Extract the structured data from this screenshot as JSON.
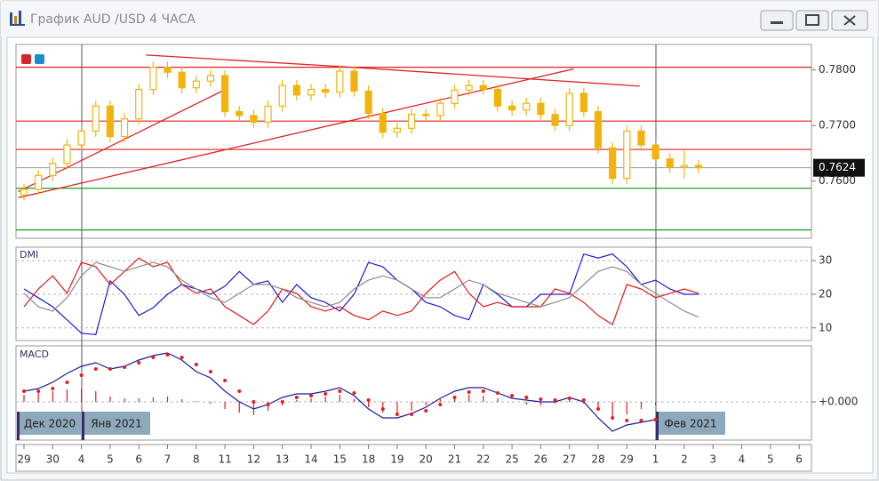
{
  "window": {
    "title": "График AUD /USD  4 ЧАСА"
  },
  "x_axis": {
    "categories": [
      "29",
      "30",
      "4",
      "5",
      "6",
      "7",
      "8",
      "11",
      "12",
      "13",
      "14",
      "15",
      "18",
      "19",
      "20",
      "21",
      "22",
      "25",
      "26",
      "27",
      "28",
      "29",
      "1",
      "2",
      "3",
      "4",
      "5",
      "6"
    ],
    "periods": [
      "Дек 2020",
      "Янв 2021",
      "Фев 2021"
    ]
  },
  "chart_data": [
    {
      "type": "candlestick",
      "color": "#f2b40c",
      "open": [
        0.7575,
        0.7585,
        0.761,
        0.7632,
        0.7665,
        0.769,
        0.7735,
        0.768,
        0.7712,
        0.7765,
        0.7805,
        0.7796,
        0.7768,
        0.778,
        0.779,
        0.7725,
        0.7718,
        0.7706,
        0.7735,
        0.7772,
        0.7755,
        0.7765,
        0.776,
        0.7798,
        0.7762,
        0.7722,
        0.7688,
        0.7695,
        0.772,
        0.7718,
        0.774,
        0.7764,
        0.7772,
        0.7765,
        0.7735,
        0.7728,
        0.774,
        0.772,
        0.77,
        0.7758,
        0.7725,
        0.766,
        0.7605,
        0.769,
        0.7665,
        0.764,
        0.7625,
        0.7628
      ],
      "high": [
        0.7595,
        0.762,
        0.7642,
        0.7675,
        0.77,
        0.7745,
        0.7745,
        0.7722,
        0.7775,
        0.7815,
        0.7815,
        0.7806,
        0.779,
        0.78,
        0.78,
        0.7735,
        0.7728,
        0.7745,
        0.7782,
        0.7782,
        0.7775,
        0.7775,
        0.7808,
        0.7808,
        0.7772,
        0.7732,
        0.7705,
        0.773,
        0.773,
        0.775,
        0.7774,
        0.7782,
        0.7782,
        0.7775,
        0.7745,
        0.775,
        0.775,
        0.773,
        0.7768,
        0.7768,
        0.7735,
        0.767,
        0.77,
        0.77,
        0.7675,
        0.765,
        0.7655,
        0.7638
      ],
      "low": [
        0.7565,
        0.7575,
        0.76,
        0.7622,
        0.7655,
        0.768,
        0.767,
        0.767,
        0.7702,
        0.7755,
        0.7786,
        0.7758,
        0.7758,
        0.777,
        0.7715,
        0.7708,
        0.7696,
        0.7696,
        0.7725,
        0.7745,
        0.7745,
        0.775,
        0.775,
        0.7752,
        0.7712,
        0.7678,
        0.7678,
        0.7685,
        0.7708,
        0.7708,
        0.773,
        0.7754,
        0.7755,
        0.7725,
        0.7718,
        0.7718,
        0.771,
        0.769,
        0.769,
        0.7715,
        0.765,
        0.7595,
        0.7595,
        0.7655,
        0.763,
        0.7615,
        0.7605,
        0.7614
      ],
      "close": [
        0.7585,
        0.761,
        0.7632,
        0.7665,
        0.769,
        0.7735,
        0.768,
        0.7712,
        0.7765,
        0.7805,
        0.7796,
        0.7768,
        0.778,
        0.779,
        0.7725,
        0.7718,
        0.7706,
        0.7735,
        0.7772,
        0.7755,
        0.7765,
        0.776,
        0.7798,
        0.7762,
        0.7722,
        0.7688,
        0.7695,
        0.772,
        0.7718,
        0.774,
        0.7764,
        0.7772,
        0.7765,
        0.7735,
        0.7728,
        0.774,
        0.772,
        0.77,
        0.7758,
        0.7725,
        0.766,
        0.7605,
        0.769,
        0.7665,
        0.764,
        0.7625,
        0.7628,
        0.7624
      ],
      "ylim": [
        0.7497,
        0.7846
      ],
      "yticks": [
        {
          "value": 0.78,
          "label": "0.7800"
        },
        {
          "value": 0.77,
          "label": "0.7700"
        },
        {
          "value": 0.76,
          "label": "0.7600"
        }
      ],
      "grid": false,
      "levels": [
        {
          "value": 0.7805,
          "color": "#e02020"
        },
        {
          "value": 0.7708,
          "color": "#e02020"
        },
        {
          "value": 0.7657,
          "color": "#e02020"
        },
        {
          "value": 0.7587,
          "color": "#1aa01a"
        },
        {
          "value": 0.7512,
          "color": "#1aa01a"
        }
      ],
      "trend_lines": [
        {
          "x": [
            8.5,
            22.2
          ],
          "y": [
            0.7827,
            0.7806
          ],
          "color": "#e02020"
        },
        {
          "x": [
            -0.4,
            38.3
          ],
          "y": [
            0.757,
            0.7802
          ],
          "color": "#e02020"
        },
        {
          "x": [
            -0.4,
            13.8
          ],
          "y": [
            0.7581,
            0.7762
          ],
          "color": "#e02020"
        },
        {
          "x": [
            22.2,
            42.9
          ],
          "y": [
            0.7806,
            0.7771
          ],
          "color": "#e02020"
        }
      ],
      "last_price": 0.7624
    },
    {
      "type": "line",
      "title": "DMI",
      "series": [
        {
          "color": "#1c1cd0",
          "values": [
            21.6,
            19,
            16.3,
            12.4,
            8.4,
            8,
            24,
            20,
            13.7,
            16,
            20,
            22.9,
            21.6,
            20,
            22.4,
            26.8,
            22.9,
            24,
            17.6,
            22.9,
            19,
            17.6,
            15,
            20,
            29.5,
            28.2,
            24.2,
            21.6,
            17.6,
            16.3,
            13.7,
            12.4,
            22.9,
            20,
            16.3,
            16.3,
            20,
            20,
            20,
            32,
            30.8,
            32,
            28.2,
            22.9,
            24.2,
            21.6,
            20,
            20
          ]
        },
        {
          "color": "#e01818",
          "values": [
            16.3,
            21.6,
            25.5,
            20.3,
            29.5,
            28.2,
            22.9,
            26.8,
            30.8,
            28.2,
            29.5,
            22.9,
            20.3,
            21.6,
            16.3,
            13.7,
            11,
            15,
            21.6,
            20.3,
            16.3,
            15,
            16.3,
            13.7,
            12.4,
            15,
            13.7,
            15,
            20.3,
            24.2,
            26.8,
            20.3,
            16.3,
            17.6,
            16.3,
            16.3,
            16.3,
            21.6,
            20.3,
            17.6,
            13.7,
            11,
            22.9,
            21.6,
            19,
            20.3,
            21.6,
            20.3
          ]
        },
        {
          "color": "#8c8c8c",
          "values": [
            20.3,
            16.3,
            15,
            19,
            25.5,
            29.5,
            28.2,
            26.8,
            28.2,
            29.5,
            28.2,
            24.2,
            21.6,
            19,
            17.6,
            20.3,
            22.9,
            22.9,
            21.6,
            19,
            17.6,
            16.3,
            17.6,
            21.6,
            24.2,
            25.5,
            24.2,
            21.6,
            19,
            19,
            21.6,
            24.2,
            22.9,
            20.3,
            19,
            17.6,
            16.3,
            17.6,
            19,
            22.9,
            26.8,
            28.2,
            26.8,
            22.9,
            20.3,
            17.6,
            15,
            13.2
          ]
        }
      ],
      "ylim": [
        6.5,
        33.5
      ],
      "yticks": [
        10,
        20,
        30
      ],
      "grid": true
    },
    {
      "type": "macd",
      "title": "MACD",
      "series": [
        {
          "color": "#1c1c9c",
          "values": [
            0.0012,
            0.0015,
            0.0022,
            0.0032,
            0.004,
            0.0044,
            0.0037,
            0.004,
            0.0047,
            0.0052,
            0.0055,
            0.0047,
            0.0034,
            0.0027,
            0.0012,
            0,
            -0.0008,
            -0.0003,
            0.0005,
            0.0009,
            0.0009,
            0.0012,
            0.0016,
            0.0007,
            -0.0008,
            -0.0018,
            -0.0018,
            -0.0013,
            -0.0006,
            0.0004,
            0.0012,
            0.0016,
            0.0016,
            0.001,
            0.0004,
            0.0002,
            0,
            0,
            0.0005,
            0,
            -0.0018,
            -0.0033,
            -0.0026,
            -0.0023,
            -0.002,
            null,
            null,
            null
          ]
        },
        {
          "color": "#e81c1c",
          "values": [
            0.0012,
            0.0012,
            0.0015,
            0.0022,
            0.003,
            0.0037,
            0.0037,
            0.0039,
            0.0044,
            0.005,
            0.0053,
            0.005,
            0.0042,
            0.0034,
            0.0024,
            0.0012,
            0,
            -0.0003,
            0,
            0.0005,
            0.0007,
            0.0009,
            0.0012,
            0.001,
            0.0002,
            -0.0008,
            -0.0014,
            -0.0014,
            -0.001,
            -0.0003,
            0.0005,
            0.0011,
            0.0012,
            0.001,
            0.0007,
            0.0005,
            0.0003,
            0.0002,
            0.0004,
            0.0002,
            -0.0008,
            -0.0018,
            -0.0021,
            -0.0021,
            -0.002,
            null,
            null,
            null
          ]
        }
      ],
      "histogram": {
        "color": "#e81c1c",
        "values": [
          0.0008,
          0.001,
          0.0012,
          0.0014,
          0.0015,
          0.0012,
          0.0006,
          0.0004,
          0.0004,
          0.0005,
          0.0006,
          0.0003,
          0.0001,
          -0.0002,
          -0.0008,
          -0.0012,
          -0.0015,
          -0.001,
          -0.0004,
          0.0002,
          0.0004,
          0.0006,
          0.0008,
          0.0003,
          -0.0006,
          -0.0012,
          -0.0014,
          -0.001,
          -0.0004,
          0.0003,
          0.0006,
          0.0008,
          0.0007,
          0.0004,
          0,
          -0.0003,
          -0.0004,
          -0.0002,
          0.0002,
          -0.0002,
          -0.001,
          -0.0016,
          -0.0014,
          -0.0008,
          -0.0004,
          null,
          null,
          null
        ]
      },
      "ylim": [
        -0.004,
        0.0062
      ],
      "yticks": [
        {
          "value": 0,
          "label": "+0.000"
        }
      ],
      "grid": true
    }
  ]
}
